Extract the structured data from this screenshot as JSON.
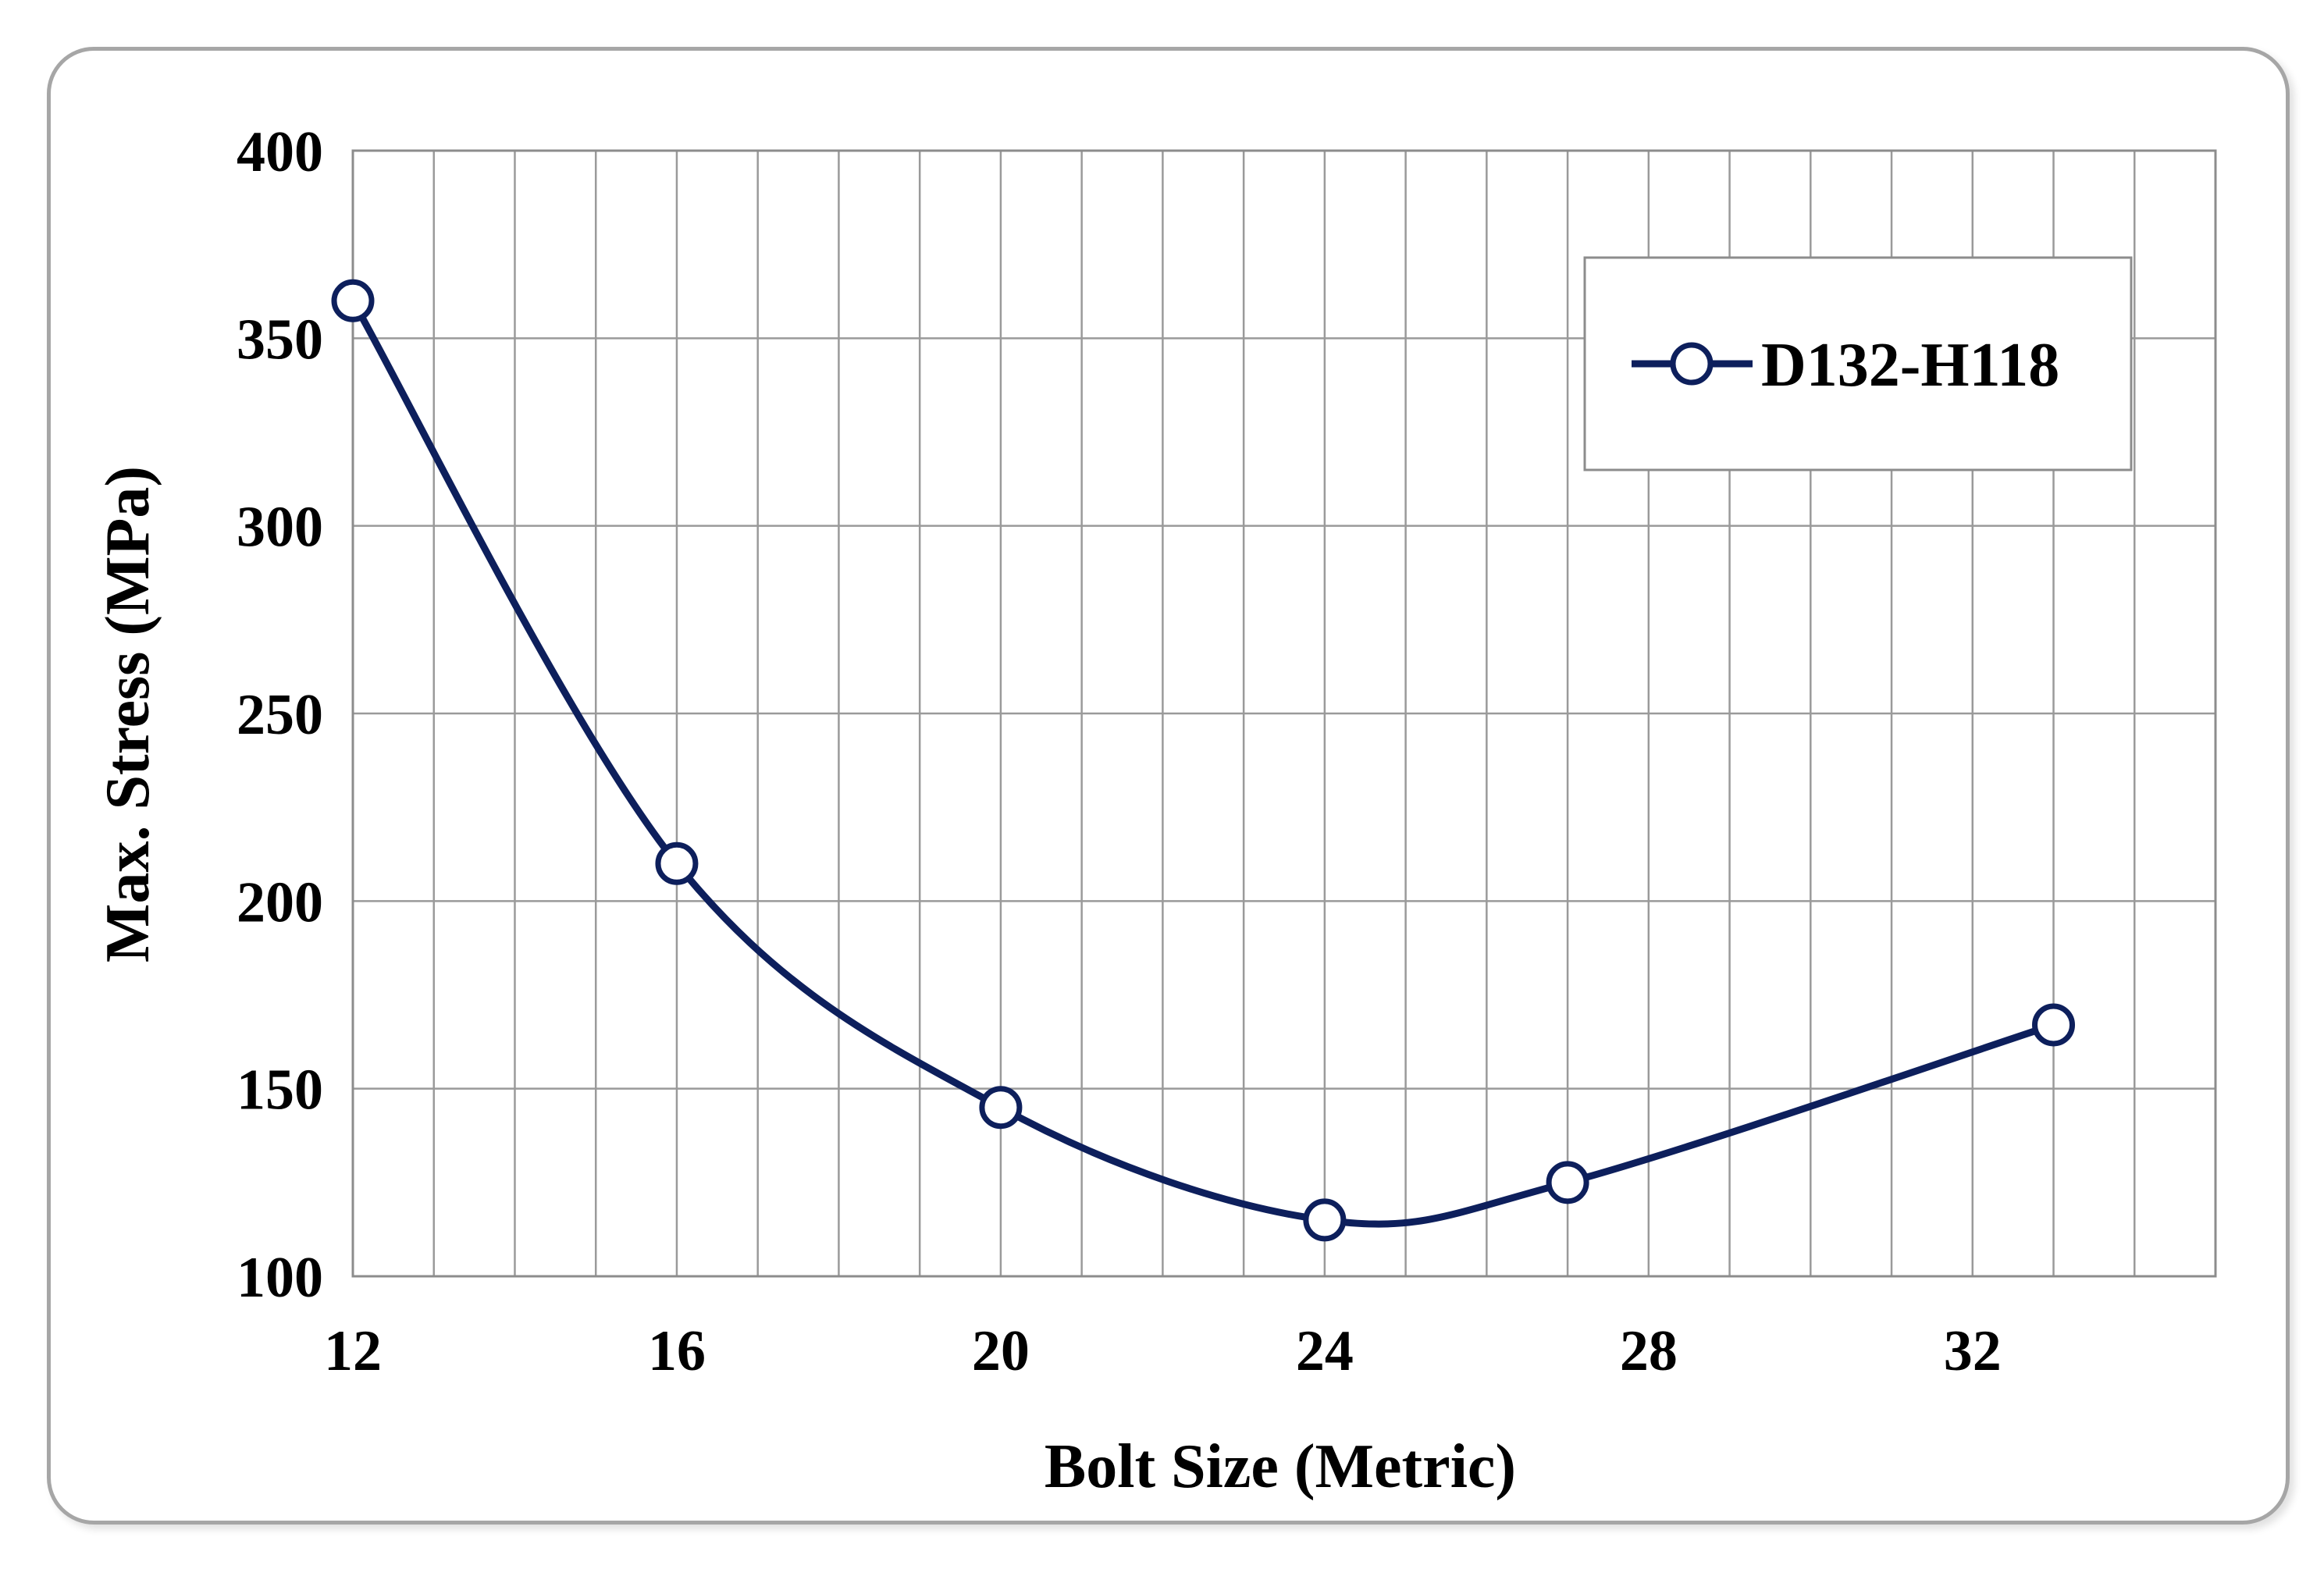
{
  "chart_data": {
    "type": "line",
    "title": "",
    "xlabel": "Bolt Size (Metric)",
    "ylabel": "Max. Stress (MPa)",
    "xlim": [
      12,
      35
    ],
    "ylim": [
      100,
      400
    ],
    "x_ticks": [
      12,
      16,
      20,
      24,
      28,
      32
    ],
    "y_ticks": [
      100,
      150,
      200,
      250,
      300,
      350,
      400
    ],
    "grid": true,
    "legend_position": "top-right",
    "series": [
      {
        "name": "D132-H118",
        "color": "#0d1f5c",
        "marker": "open-circle",
        "smooth": true,
        "x": [
          12,
          16,
          20,
          24,
          27,
          33
        ],
        "y": [
          360,
          210,
          145,
          115,
          125,
          167
        ]
      }
    ]
  }
}
